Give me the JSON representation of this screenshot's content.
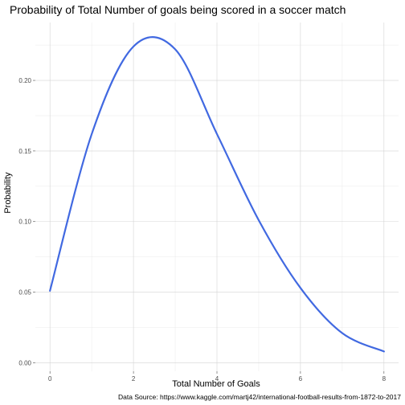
{
  "chart_data": {
    "type": "line",
    "title": "Probability of Total Number of goals being scored in a soccer match",
    "xlabel": "Total Number of Goals",
    "ylabel": "Probability",
    "caption": "Data Source: https://www.kaggle.com/martj42/international-football-results-from-1872-to-2017",
    "xlim": [
      -0.35,
      8.35
    ],
    "ylim": [
      -0.006,
      0.241
    ],
    "x_ticks": [
      0,
      2,
      4,
      6,
      8
    ],
    "x_tick_labels": [
      "0",
      "2",
      "4",
      "6",
      "8"
    ],
    "y_ticks": [
      0.0,
      0.05,
      0.1,
      0.15,
      0.2
    ],
    "y_tick_labels": [
      "0.00",
      "0.05",
      "0.10",
      "0.15",
      "0.20"
    ],
    "grid": true,
    "line_color": "#4169e1",
    "series": [
      {
        "x": [
          0,
          1,
          2,
          3,
          4,
          5,
          6,
          7,
          8
        ],
        "values": [
          0.051,
          0.162,
          0.224,
          0.222,
          0.162,
          0.101,
          0.053,
          0.021,
          0.008
        ]
      }
    ]
  }
}
